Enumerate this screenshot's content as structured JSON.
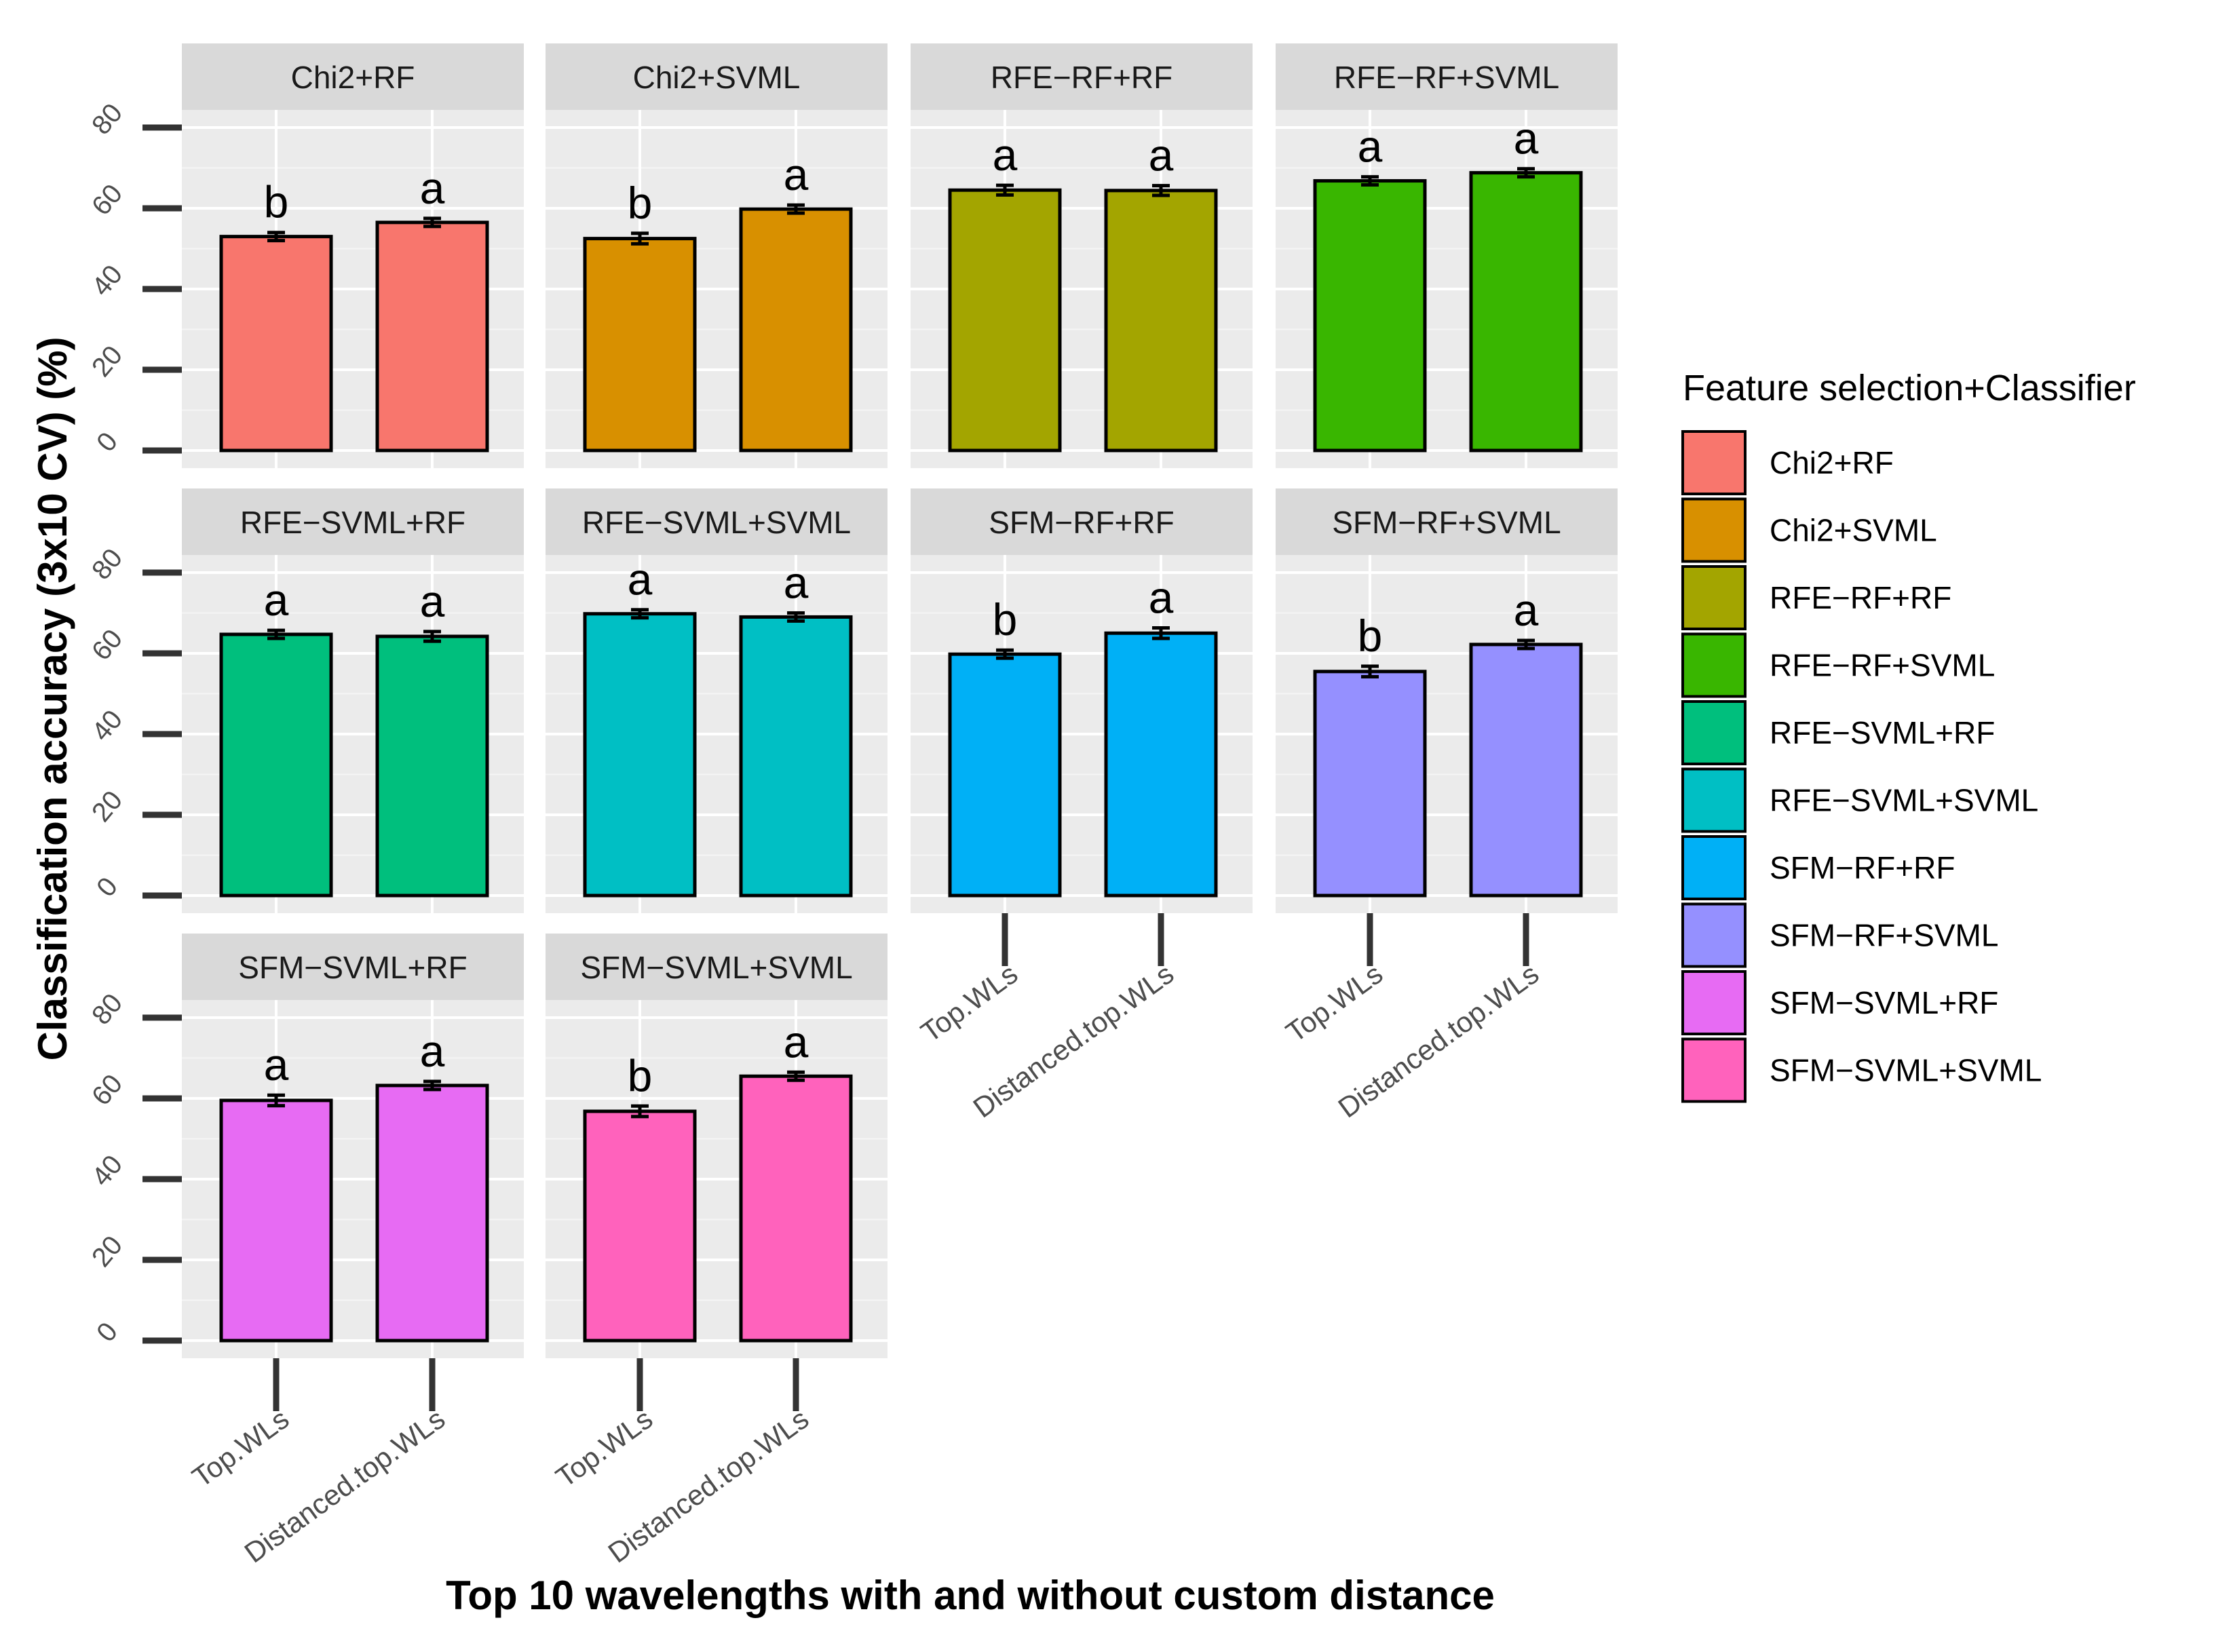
{
  "chart_data": {
    "type": "bar",
    "layout": "faceted",
    "categories": [
      "Top.WLs",
      "Distanced.top.WLs"
    ],
    "ylim": [
      0,
      80
    ],
    "yticks": [
      0,
      20,
      40,
      60,
      80
    ],
    "xlabel": "Top 10 wavelengths with and without custom distance",
    "ylabel": "Classification accuracy (3x10 CV) (%)",
    "legend": {
      "title": "Feature selection+Classifier",
      "position": "right"
    },
    "panels": [
      {
        "name": "Chi2+RF",
        "color": "#F8766D",
        "values": [
          53.0,
          56.5
        ],
        "errors": [
          1.0,
          1.0
        ],
        "letters": [
          "b",
          "a"
        ]
      },
      {
        "name": "Chi2+SVML",
        "color": "#D89000",
        "values": [
          52.5,
          59.8
        ],
        "errors": [
          1.3,
          1.0
        ],
        "letters": [
          "b",
          "a"
        ]
      },
      {
        "name": "RFE−RF+RF",
        "color": "#A3A500",
        "values": [
          64.5,
          64.4
        ],
        "errors": [
          1.2,
          1.2
        ],
        "letters": [
          "a",
          "a"
        ]
      },
      {
        "name": "RFE−RF+SVML",
        "color": "#39B600",
        "values": [
          66.8,
          68.8
        ],
        "errors": [
          1.0,
          1.0
        ],
        "letters": [
          "a",
          "a"
        ]
      },
      {
        "name": "RFE−SVML+RF",
        "color": "#00BF7D",
        "values": [
          64.7,
          64.2
        ],
        "errors": [
          1.0,
          1.2
        ],
        "letters": [
          "a",
          "a"
        ]
      },
      {
        "name": "RFE−SVML+SVML",
        "color": "#00BFC4",
        "values": [
          69.8,
          69.0
        ],
        "errors": [
          1.0,
          1.0
        ],
        "letters": [
          "a",
          "a"
        ]
      },
      {
        "name": "SFM−RF+RF",
        "color": "#00B0F6",
        "values": [
          59.8,
          65.0
        ],
        "errors": [
          1.0,
          1.3
        ],
        "letters": [
          "b",
          "a"
        ]
      },
      {
        "name": "SFM−RF+SVML",
        "color": "#9590FF",
        "values": [
          55.5,
          62.2
        ],
        "errors": [
          1.3,
          1.0
        ],
        "letters": [
          "b",
          "a"
        ]
      },
      {
        "name": "SFM−SVML+RF",
        "color": "#E76BF3",
        "values": [
          59.5,
          63.2
        ],
        "errors": [
          1.3,
          1.0
        ],
        "letters": [
          "a",
          "a"
        ]
      },
      {
        "name": "SFM−SVML+SVML",
        "color": "#FF62BC",
        "values": [
          56.8,
          65.5
        ],
        "errors": [
          1.3,
          1.0
        ],
        "letters": [
          "b",
          "a"
        ]
      }
    ]
  }
}
